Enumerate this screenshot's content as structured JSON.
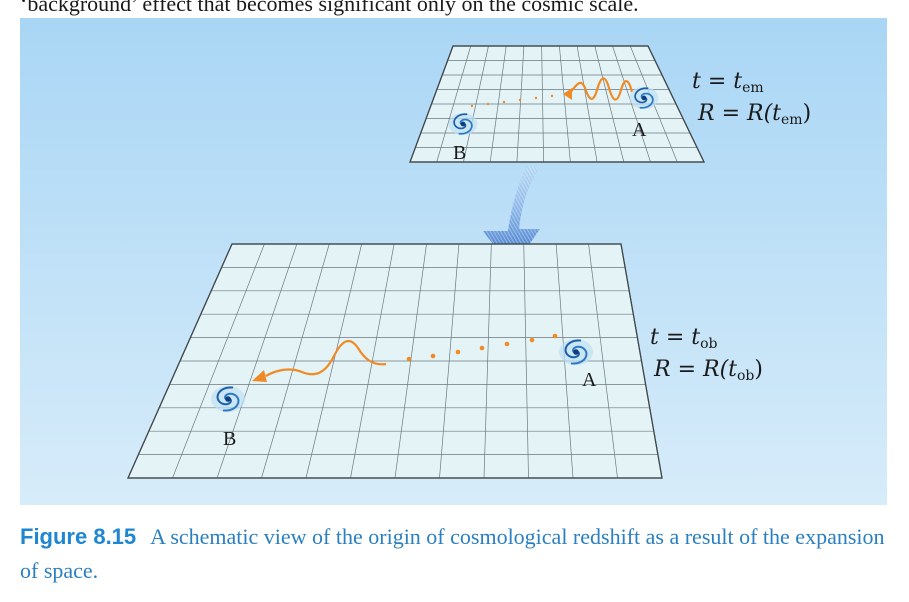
{
  "intro_text": "‘background’ effect that becomes significant only on the cosmic scale.",
  "caption": {
    "label": "Figure 8.15",
    "text": "A schematic view of the origin of cosmological redshift as a result of the expansion of space."
  },
  "top_plane": {
    "galaxy_a_label": "A",
    "galaxy_b_label": "B",
    "time_label": {
      "var": "t",
      "eq": " = ",
      "sym": "t",
      "sub": "em"
    },
    "scale_label": {
      "var": "R",
      "eq": " = ",
      "func": "R(",
      "sym": "t",
      "sub": "em",
      "close": ")"
    }
  },
  "bottom_plane": {
    "galaxy_a_label": "A",
    "galaxy_b_label": "B",
    "time_label": {
      "var": "t",
      "eq": " = ",
      "sym": "t",
      "sub": "ob"
    },
    "scale_label": {
      "var": "R",
      "eq": " = ",
      "func": "R(",
      "sym": "t",
      "sub": "ob",
      "close": ")"
    }
  },
  "colors": {
    "background_top": "#a9d6f5",
    "background_bottom": "#d7ecfa",
    "plane_fill": "#e4f3f6",
    "grid_line": "#6c7a80",
    "photon": "#f08a24",
    "arrow": "#3f78c8",
    "caption": "#2a7fc1"
  }
}
